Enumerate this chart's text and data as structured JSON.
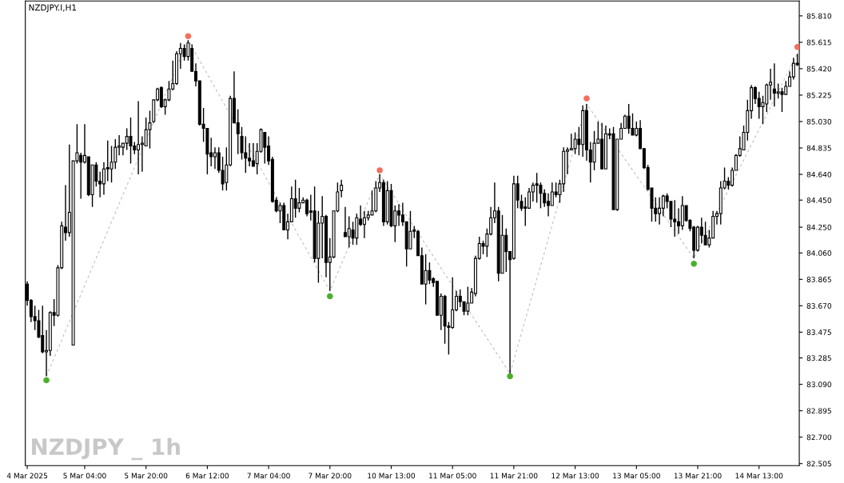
{
  "chart_data": {
    "type": "candlestick",
    "title": "NZDJPY.I,H1",
    "annotations": [
      "NZDJPY _ 1h"
    ],
    "categories": [
      "4 Mar 2025",
      null,
      null,
      null,
      null,
      null,
      null,
      null,
      null,
      null,
      null,
      null,
      null,
      null,
      null,
      "5 Mar 04:00",
      null,
      null,
      null,
      null,
      null,
      null,
      null,
      null,
      null,
      null,
      null,
      null,
      null,
      null,
      null,
      "5 Mar 20:00",
      null,
      null,
      null,
      null,
      null,
      null,
      null,
      null,
      null,
      null,
      null,
      null,
      null,
      null,
      null,
      "6 Mar 12:00",
      null,
      null,
      null,
      null,
      null,
      null,
      null,
      null,
      null,
      null,
      null,
      null,
      null,
      null,
      null,
      "7 Mar 04:00",
      null,
      null,
      null,
      null,
      null,
      null,
      null,
      null,
      null,
      null,
      null,
      null,
      null,
      null,
      null,
      "7 Mar 20:00",
      null,
      null,
      null,
      null,
      null,
      null,
      null,
      null,
      null,
      null,
      null,
      null,
      null,
      null,
      null,
      "10 Mar 13:00",
      null,
      null,
      null,
      null,
      null,
      null,
      null,
      null,
      null,
      null,
      null,
      null,
      null,
      null,
      null,
      "11 Mar 05:00",
      null,
      null,
      null,
      null,
      null,
      null,
      null,
      null,
      null,
      null,
      null,
      null,
      null,
      null,
      null,
      "11 Mar 21:00",
      null,
      null,
      null,
      null,
      null,
      null,
      null,
      null,
      null,
      null,
      null,
      null,
      null,
      null,
      null,
      "12 Mar 13:00",
      null,
      null,
      null,
      null,
      null,
      null,
      null,
      null,
      null,
      null,
      null,
      null,
      null,
      null,
      null,
      "13 Mar 05:00",
      null,
      null,
      null,
      null,
      null,
      null,
      null,
      null,
      null,
      null,
      null,
      null,
      null,
      null,
      null,
      "13 Mar 21:00",
      null,
      null,
      null,
      null,
      null,
      null,
      null,
      null,
      null,
      null,
      null,
      null,
      null,
      null,
      null,
      "14 Mar 13:00",
      null,
      null,
      null,
      null,
      null,
      null,
      null,
      null,
      null,
      null
    ],
    "ohlc": [
      [
        83.83,
        83.85,
        83.67,
        83.71
      ],
      [
        83.71,
        83.72,
        83.55,
        83.59
      ],
      [
        83.59,
        83.67,
        83.49,
        83.56
      ],
      [
        83.56,
        83.64,
        83.43,
        83.44
      ],
      [
        83.45,
        83.67,
        83.32,
        83.33
      ],
      [
        83.33,
        83.49,
        83.15,
        83.34
      ],
      [
        83.34,
        83.63,
        83.3,
        83.62
      ],
      [
        83.62,
        83.72,
        83.52,
        83.6
      ],
      [
        83.6,
        83.97,
        83.59,
        83.95
      ],
      [
        83.95,
        84.29,
        83.94,
        84.26
      ],
      [
        84.25,
        84.56,
        84.15,
        84.21
      ],
      [
        84.21,
        84.86,
        84.18,
        84.36
      ],
      [
        83.38,
        84.74,
        83.38,
        84.74
      ],
      [
        84.74,
        85.01,
        84.72,
        84.8
      ],
      [
        84.78,
        84.8,
        84.46,
        84.73
      ],
      [
        84.73,
        85.01,
        84.72,
        84.78
      ],
      [
        84.77,
        84.77,
        84.48,
        84.49
      ],
      [
        84.49,
        84.71,
        84.4,
        84.71
      ],
      [
        84.71,
        84.73,
        84.55,
        84.59
      ],
      [
        84.59,
        84.66,
        84.47,
        84.57
      ],
      [
        84.57,
        84.73,
        84.49,
        84.68
      ],
      [
        84.69,
        84.89,
        84.59,
        84.68
      ],
      [
        84.68,
        84.85,
        84.58,
        84.73
      ],
      [
        84.73,
        84.9,
        84.68,
        84.84
      ],
      [
        84.84,
        84.93,
        84.78,
        84.85
      ],
      [
        84.84,
        84.87,
        84.78,
        84.87
      ],
      [
        84.87,
        84.98,
        84.82,
        84.92
      ],
      [
        84.92,
        85.06,
        84.72,
        84.85
      ],
      [
        84.85,
        84.88,
        84.79,
        84.82
      ],
      [
        84.82,
        85.18,
        84.64,
        84.86
      ],
      [
        84.86,
        84.92,
        84.66,
        84.87
      ],
      [
        84.85,
        85.06,
        84.85,
        84.97
      ],
      [
        84.97,
        85.11,
        84.83,
        85.02
      ],
      [
        85.03,
        85.19,
        85.02,
        85.19
      ],
      [
        85.19,
        85.28,
        85.18,
        85.27
      ],
      [
        85.28,
        85.29,
        85.13,
        85.14
      ],
      [
        85.14,
        85.2,
        85.08,
        85.19
      ],
      [
        85.19,
        85.33,
        85.18,
        85.27
      ],
      [
        85.27,
        85.48,
        85.26,
        85.31
      ],
      [
        85.31,
        85.55,
        85.3,
        85.53
      ],
      [
        85.53,
        85.61,
        85.42,
        85.57
      ],
      [
        85.57,
        85.6,
        85.48,
        85.51
      ],
      [
        85.51,
        85.63,
        85.48,
        85.61
      ],
      [
        85.57,
        85.6,
        85.4,
        85.4
      ],
      [
        85.4,
        85.46,
        85.29,
        85.33
      ],
      [
        85.33,
        85.33,
        85.0,
        85.01
      ],
      [
        85.01,
        85.13,
        84.88,
        84.98
      ],
      [
        84.98,
        84.98,
        84.64,
        84.79
      ],
      [
        84.8,
        84.91,
        84.7,
        84.77
      ],
      [
        84.77,
        84.84,
        84.68,
        84.8
      ],
      [
        84.8,
        84.84,
        84.65,
        84.67
      ],
      [
        84.67,
        84.77,
        84.52,
        84.57
      ],
      [
        84.58,
        84.84,
        84.52,
        84.71
      ],
      [
        84.71,
        85.22,
        84.7,
        85.2
      ],
      [
        85.2,
        85.4,
        85.02,
        85.02
      ],
      [
        85.02,
        85.12,
        84.79,
        84.94
      ],
      [
        84.92,
        84.99,
        84.75,
        84.8
      ],
      [
        84.8,
        84.92,
        84.65,
        84.76
      ],
      [
        84.76,
        84.87,
        84.7,
        84.74
      ],
      [
        84.74,
        84.87,
        84.7,
        84.7
      ],
      [
        84.72,
        84.87,
        84.64,
        84.81
      ],
      [
        84.81,
        84.98,
        84.8,
        84.97
      ],
      [
        84.95,
        84.95,
        84.72,
        84.84
      ],
      [
        84.85,
        84.92,
        84.71,
        84.74
      ],
      [
        84.75,
        84.77,
        84.43,
        84.44
      ],
      [
        84.45,
        84.47,
        84.36,
        84.37
      ],
      [
        84.37,
        84.43,
        84.28,
        84.41
      ],
      [
        84.41,
        84.43,
        84.23,
        84.23
      ],
      [
        84.23,
        84.35,
        84.16,
        84.29
      ],
      [
        84.29,
        84.55,
        84.29,
        84.46
      ],
      [
        84.46,
        84.6,
        84.32,
        84.39
      ],
      [
        84.39,
        84.54,
        84.36,
        84.43
      ],
      [
        84.43,
        84.47,
        84.43,
        84.45
      ],
      [
        84.45,
        84.46,
        84.33,
        84.35
      ],
      [
        84.37,
        84.49,
        84.3,
        84.36
      ],
      [
        84.37,
        84.55,
        83.99,
        84.02
      ],
      [
        84.02,
        84.37,
        83.84,
        84.28
      ],
      [
        84.28,
        84.48,
        84.02,
        84.33
      ],
      [
        84.33,
        84.34,
        83.88,
        83.99
      ],
      [
        83.99,
        84.17,
        83.78,
        84.03
      ],
      [
        84.03,
        84.37,
        84.02,
        84.37
      ],
      [
        84.37,
        84.58,
        84.36,
        84.51
      ],
      [
        84.52,
        84.6,
        84.47,
        84.56
      ],
      [
        84.21,
        84.4,
        84.18,
        84.18
      ],
      [
        84.18,
        84.33,
        84.1,
        84.24
      ],
      [
        84.23,
        84.29,
        84.12,
        84.17
      ],
      [
        84.17,
        84.35,
        84.12,
        84.32
      ],
      [
        84.31,
        84.41,
        84.26,
        84.27
      ],
      [
        84.27,
        84.37,
        84.17,
        84.32
      ],
      [
        84.32,
        84.37,
        84.3,
        84.34
      ],
      [
        84.34,
        84.52,
        84.34,
        84.37
      ],
      [
        84.37,
        84.59,
        84.36,
        84.54
      ],
      [
        84.54,
        84.64,
        84.51,
        84.58
      ],
      [
        84.58,
        84.6,
        84.26,
        84.29
      ],
      [
        84.29,
        84.59,
        84.27,
        84.52
      ],
      [
        84.52,
        84.57,
        84.25,
        84.26
      ],
      [
        84.26,
        84.41,
        84.14,
        84.37
      ],
      [
        84.37,
        84.42,
        84.26,
        84.34
      ],
      [
        84.34,
        84.43,
        84.26,
        84.29
      ],
      [
        84.29,
        84.29,
        83.96,
        84.09
      ],
      [
        84.09,
        84.37,
        84.09,
        84.22
      ],
      [
        84.23,
        84.26,
        84.17,
        84.22
      ],
      [
        84.22,
        84.23,
        84.04,
        84.04
      ],
      [
        84.04,
        84.1,
        83.83,
        83.83
      ],
      [
        83.83,
        84.05,
        83.68,
        83.93
      ],
      [
        83.93,
        83.99,
        83.83,
        83.86
      ],
      [
        83.87,
        83.88,
        83.81,
        83.84
      ],
      [
        83.85,
        83.85,
        83.6,
        83.6
      ],
      [
        83.6,
        83.76,
        83.49,
        83.74
      ],
      [
        83.74,
        83.75,
        83.39,
        83.52
      ],
      [
        83.52,
        83.55,
        83.31,
        83.51
      ],
      [
        83.51,
        83.88,
        83.5,
        83.64
      ],
      [
        83.64,
        83.78,
        83.63,
        83.74
      ],
      [
        83.74,
        83.79,
        83.66,
        83.7
      ],
      [
        83.7,
        83.7,
        83.6,
        83.63
      ],
      [
        83.63,
        83.81,
        83.6,
        83.69
      ],
      [
        83.69,
        83.8,
        83.69,
        83.77
      ],
      [
        83.76,
        84.04,
        83.74,
        84.02
      ],
      [
        84.02,
        84.18,
        84.01,
        84.13
      ],
      [
        84.13,
        84.15,
        84.05,
        84.11
      ],
      [
        84.11,
        84.24,
        84.03,
        84.2
      ],
      [
        84.2,
        84.4,
        84.19,
        84.32
      ],
      [
        84.32,
        84.58,
        84.28,
        84.37
      ],
      [
        84.37,
        84.4,
        83.85,
        83.91
      ],
      [
        83.91,
        84.34,
        83.91,
        84.19
      ],
      [
        84.19,
        84.24,
        83.92,
        84.07
      ],
      [
        84.07,
        84.07,
        83.17,
        84.01
      ],
      [
        84.02,
        84.63,
        84.01,
        84.57
      ],
      [
        84.57,
        84.63,
        84.39,
        84.45
      ],
      [
        84.44,
        84.49,
        84.37,
        84.39
      ],
      [
        84.4,
        84.47,
        84.26,
        84.39
      ],
      [
        84.39,
        84.54,
        84.39,
        84.51
      ],
      [
        84.51,
        84.58,
        84.44,
        84.56
      ],
      [
        84.57,
        84.65,
        84.43,
        84.56
      ],
      [
        84.56,
        84.58,
        84.39,
        84.5
      ],
      [
        84.5,
        84.53,
        84.4,
        84.43
      ],
      [
        84.44,
        84.5,
        84.33,
        84.41
      ],
      [
        84.41,
        84.58,
        84.41,
        84.51
      ],
      [
        84.51,
        84.58,
        84.47,
        84.49
      ],
      [
        84.49,
        84.6,
        84.43,
        84.57
      ],
      [
        84.57,
        84.84,
        84.51,
        84.81
      ],
      [
        84.81,
        84.84,
        84.64,
        84.82
      ],
      [
        84.82,
        84.94,
        84.82,
        84.83
      ],
      [
        84.83,
        84.95,
        84.79,
        84.9
      ],
      [
        84.9,
        84.99,
        84.78,
        84.86
      ],
      [
        84.86,
        85.15,
        84.77,
        85.11
      ],
      [
        85.11,
        85.16,
        84.74,
        84.82
      ],
      [
        84.82,
        84.88,
        84.58,
        84.73
      ],
      [
        84.73,
        84.96,
        84.67,
        84.87
      ],
      [
        84.87,
        85.03,
        84.87,
        84.9
      ],
      [
        84.9,
        85.02,
        84.68,
        84.68
      ],
      [
        84.68,
        85.0,
        84.68,
        84.94
      ],
      [
        84.94,
        84.98,
        84.9,
        84.93
      ],
      [
        84.94,
        84.99,
        84.38,
        84.38
      ],
      [
        84.38,
        84.9,
        84.37,
        84.9
      ],
      [
        84.9,
        85.02,
        84.9,
        84.98
      ],
      [
        84.98,
        85.08,
        84.98,
        85.07
      ],
      [
        85.07,
        85.16,
        84.94,
        84.98
      ],
      [
        84.98,
        85.09,
        84.93,
        84.93
      ],
      [
        84.93,
        85.03,
        84.92,
        84.98
      ],
      [
        84.98,
        85.04,
        84.83,
        84.83
      ],
      [
        84.83,
        84.83,
        84.68,
        84.69
      ],
      [
        84.69,
        84.71,
        84.52,
        84.53
      ],
      [
        84.54,
        84.54,
        84.29,
        84.39
      ],
      [
        84.39,
        84.47,
        84.29,
        84.35
      ],
      [
        84.35,
        84.47,
        84.27,
        84.39
      ],
      [
        84.39,
        84.49,
        84.33,
        84.48
      ],
      [
        84.48,
        84.5,
        84.39,
        84.44
      ],
      [
        84.44,
        84.44,
        84.25,
        84.31
      ],
      [
        84.31,
        84.45,
        84.18,
        84.29
      ],
      [
        84.29,
        84.39,
        84.2,
        84.26
      ],
      [
        84.26,
        84.48,
        84.23,
        84.41
      ],
      [
        84.41,
        84.41,
        84.29,
        84.3
      ],
      [
        84.3,
        84.31,
        84.22,
        84.24
      ],
      [
        84.25,
        84.26,
        84.02,
        84.08
      ],
      [
        84.08,
        84.26,
        84.07,
        84.25
      ],
      [
        84.25,
        84.32,
        84.13,
        84.19
      ],
      [
        84.19,
        84.29,
        84.12,
        84.12
      ],
      [
        84.12,
        84.23,
        84.1,
        84.17
      ],
      [
        84.17,
        84.37,
        84.17,
        84.33
      ],
      [
        84.33,
        84.37,
        84.27,
        84.35
      ],
      [
        84.35,
        84.59,
        84.27,
        84.54
      ],
      [
        84.54,
        84.69,
        84.53,
        84.59
      ],
      [
        84.59,
        84.62,
        84.53,
        84.56
      ],
      [
        84.56,
        84.69,
        84.55,
        84.67
      ],
      [
        84.67,
        84.79,
        84.67,
        84.78
      ],
      [
        84.78,
        84.92,
        84.77,
        84.83
      ],
      [
        84.82,
        85.0,
        84.82,
        84.95
      ],
      [
        84.95,
        85.19,
        84.89,
        85.11
      ],
      [
        85.11,
        85.3,
        85.05,
        85.28
      ],
      [
        85.28,
        85.29,
        85.16,
        85.2
      ],
      [
        85.2,
        85.25,
        85.05,
        85.14
      ],
      [
        85.14,
        85.22,
        85.01,
        85.17
      ],
      [
        85.16,
        85.31,
        85.1,
        85.3
      ],
      [
        85.3,
        85.42,
        85.19,
        85.32
      ],
      [
        85.27,
        85.46,
        85.14,
        85.24
      ],
      [
        85.24,
        85.31,
        85.2,
        85.25
      ],
      [
        85.25,
        85.28,
        85.1,
        85.23
      ],
      [
        85.23,
        85.33,
        85.23,
        85.29
      ],
      [
        85.29,
        85.4,
        85.29,
        85.36
      ],
      [
        85.36,
        85.5,
        85.34,
        85.46
      ],
      [
        85.46,
        85.53,
        85.44,
        85.45
      ]
    ],
    "series": [
      {
        "type": "line",
        "color": "#c0c0c0",
        "line_style": "dashed",
        "values": [
          null,
          null,
          null,
          null,
          null,
          83.15,
          null,
          null,
          null,
          null,
          null,
          null,
          null,
          null,
          null,
          null,
          null,
          null,
          null,
          null,
          null,
          null,
          null,
          null,
          null,
          null,
          null,
          null,
          null,
          null,
          null,
          null,
          null,
          null,
          null,
          null,
          null,
          null,
          null,
          null,
          null,
          null,
          85.63,
          null,
          null,
          null,
          null,
          null,
          null,
          null,
          null,
          null,
          null,
          null,
          null,
          null,
          null,
          null,
          null,
          null,
          null,
          null,
          null,
          null,
          null,
          null,
          null,
          null,
          null,
          null,
          null,
          null,
          null,
          null,
          null,
          null,
          null,
          null,
          null,
          83.78,
          null,
          null,
          null,
          null,
          null,
          null,
          null,
          null,
          null,
          null,
          null,
          null,
          84.64,
          null,
          null,
          null,
          null,
          null,
          null,
          null,
          null,
          null,
          null,
          null,
          null,
          null,
          null,
          null,
          null,
          null,
          null,
          null,
          null,
          null,
          null,
          null,
          null,
          null,
          null,
          null,
          null,
          null,
          null,
          null,
          null,
          null,
          83.17,
          null,
          null,
          null,
          null,
          null,
          null,
          null,
          null,
          null,
          null,
          null,
          null,
          null,
          null,
          null,
          null,
          null,
          null,
          null,
          85.16,
          null,
          null,
          null,
          null,
          null,
          null,
          null,
          null,
          null,
          null,
          null,
          null,
          null,
          null,
          null,
          null,
          null,
          null,
          null,
          null,
          null,
          null,
          null,
          null,
          null,
          null,
          null,
          84.02,
          null,
          null,
          null,
          null,
          null,
          null,
          null,
          null,
          null,
          null,
          null,
          null,
          null,
          null,
          null,
          null,
          null,
          null,
          null,
          null,
          null,
          null,
          null,
          null,
          null,
          null,
          85.53
        ]
      },
      {
        "type": "scatter",
        "color": "#f07060",
        "marker": "circle",
        "values": [
          null,
          null,
          null,
          null,
          null,
          null,
          null,
          null,
          null,
          null,
          null,
          null,
          null,
          null,
          null,
          null,
          null,
          null,
          null,
          null,
          null,
          null,
          null,
          null,
          null,
          null,
          null,
          null,
          null,
          null,
          null,
          null,
          null,
          null,
          null,
          null,
          null,
          null,
          null,
          null,
          null,
          null,
          85.66,
          null,
          null,
          null,
          null,
          null,
          null,
          null,
          null,
          null,
          null,
          null,
          null,
          null,
          null,
          null,
          null,
          null,
          null,
          null,
          null,
          null,
          null,
          null,
          null,
          null,
          null,
          null,
          null,
          null,
          null,
          null,
          null,
          null,
          null,
          null,
          null,
          null,
          null,
          null,
          null,
          null,
          null,
          null,
          null,
          null,
          null,
          null,
          null,
          null,
          84.67,
          null,
          null,
          null,
          null,
          null,
          null,
          null,
          null,
          null,
          null,
          null,
          null,
          null,
          null,
          null,
          null,
          null,
          null,
          null,
          null,
          null,
          null,
          null,
          null,
          null,
          null,
          null,
          null,
          null,
          null,
          null,
          null,
          null,
          null,
          null,
          null,
          null,
          null,
          null,
          null,
          null,
          null,
          null,
          null,
          null,
          null,
          null,
          null,
          null,
          null,
          null,
          null,
          null,
          85.2,
          null,
          null,
          null,
          null,
          null,
          null,
          null,
          null,
          null,
          null,
          null,
          null,
          null,
          null,
          null,
          null,
          null,
          null,
          null,
          null,
          null,
          null,
          null,
          null,
          null,
          null,
          null,
          null,
          null,
          null,
          null,
          null,
          null,
          null,
          null,
          null,
          null,
          null,
          null,
          null,
          null,
          null,
          null,
          null,
          null,
          null,
          null,
          null,
          null,
          null,
          null,
          null,
          null,
          null,
          85.58
        ]
      },
      {
        "type": "scatter",
        "color": "#4caf2a",
        "marker": "circle",
        "values": [
          null,
          null,
          null,
          null,
          null,
          83.12,
          null,
          null,
          null,
          null,
          null,
          null,
          null,
          null,
          null,
          null,
          null,
          null,
          null,
          null,
          null,
          null,
          null,
          null,
          null,
          null,
          null,
          null,
          null,
          null,
          null,
          null,
          null,
          null,
          null,
          null,
          null,
          null,
          null,
          null,
          null,
          null,
          null,
          null,
          null,
          null,
          null,
          null,
          null,
          null,
          null,
          null,
          null,
          null,
          null,
          null,
          null,
          null,
          null,
          null,
          null,
          null,
          null,
          null,
          null,
          null,
          null,
          null,
          null,
          null,
          null,
          null,
          null,
          null,
          null,
          null,
          null,
          null,
          null,
          83.74,
          null,
          null,
          null,
          null,
          null,
          null,
          null,
          null,
          null,
          null,
          null,
          null,
          null,
          null,
          null,
          null,
          null,
          null,
          null,
          null,
          null,
          null,
          null,
          null,
          null,
          null,
          null,
          null,
          null,
          null,
          null,
          null,
          null,
          null,
          null,
          null,
          null,
          null,
          null,
          null,
          null,
          null,
          null,
          null,
          null,
          null,
          83.15,
          null,
          null,
          null,
          null,
          null,
          null,
          null,
          null,
          null,
          null,
          null,
          null,
          null,
          null,
          null,
          null,
          null,
          null,
          null,
          null,
          null,
          null,
          null,
          null,
          null,
          null,
          null,
          null,
          null,
          null,
          null,
          null,
          null,
          null,
          null,
          null,
          null,
          null,
          null,
          null,
          null,
          null,
          null,
          null,
          null,
          null,
          null,
          83.98,
          null,
          null,
          null,
          null,
          null,
          null,
          null,
          null,
          null,
          null,
          null,
          null,
          null,
          null,
          null,
          null,
          null,
          null,
          null,
          null,
          null,
          null,
          null,
          null,
          null,
          null,
          null
        ]
      }
    ],
    "ylim": [
      82.49,
      85.92
    ],
    "yticks": [
      {
        "value": 82.505,
        "label": "82.505"
      },
      {
        "value": 82.7,
        "label": "82.700"
      },
      {
        "value": 82.895,
        "label": "82.895"
      },
      {
        "value": 83.09,
        "label": "83.090"
      },
      {
        "value": 83.285,
        "label": "83.285"
      },
      {
        "value": 83.475,
        "label": "83.475"
      },
      {
        "value": 83.67,
        "label": "83.670"
      },
      {
        "value": 83.865,
        "label": "83.865"
      },
      {
        "value": 84.06,
        "label": "84.060"
      },
      {
        "value": 84.25,
        "label": "84.250"
      },
      {
        "value": 84.45,
        "label": "84.450"
      },
      {
        "value": 84.64,
        "label": "84.640"
      },
      {
        "value": 84.835,
        "label": "84.835"
      },
      {
        "value": 85.03,
        "label": "85.030"
      },
      {
        "value": 85.225,
        "label": "85.225"
      },
      {
        "value": 85.42,
        "label": "85.420"
      },
      {
        "value": 85.615,
        "label": "85.615"
      },
      {
        "value": 85.81,
        "label": "85.810"
      }
    ],
    "grid": false,
    "legend": false
  }
}
